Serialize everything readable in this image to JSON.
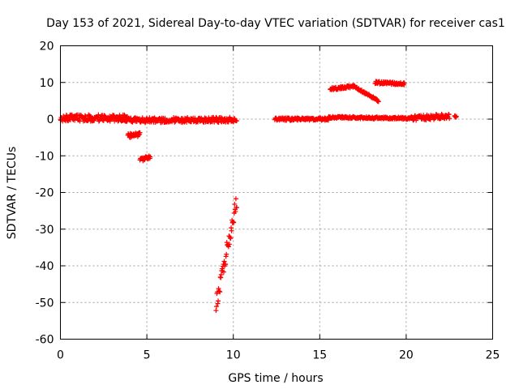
{
  "chart_data": {
    "type": "scatter",
    "title": "Day 153 of 2021, Sidereal Day-to-day VTEC variation (SDTVAR) for receiver cas1",
    "xlabel": "GPS time / hours",
    "ylabel": "SDTVAR / TECUs",
    "xlim": [
      0,
      25
    ],
    "ylim": [
      -60,
      20
    ],
    "xticks": [
      0,
      5,
      10,
      15,
      20,
      25
    ],
    "yticks": [
      -60,
      -50,
      -40,
      -30,
      -20,
      -10,
      0,
      10,
      20
    ],
    "grid": true,
    "marker": "+",
    "color": "#ff0000",
    "series": [
      {
        "name": "SDTVAR",
        "segments": [
          {
            "x_start": 0.0,
            "x_end": 3.9,
            "y_start": 0.3,
            "y_end": 0.3,
            "noise": 0.9
          },
          {
            "x_start": 3.9,
            "x_end": 4.6,
            "y_start": -4.5,
            "y_end": -4.2,
            "noise": 0.6
          },
          {
            "x_start": 4.6,
            "x_end": 5.2,
            "y_start": -11.2,
            "y_end": -10.3,
            "noise": 0.5
          },
          {
            "x_start": 3.5,
            "x_end": 10.2,
            "y_start": -0.3,
            "y_end": -0.2,
            "noise": 0.7
          },
          {
            "x_start": 9.0,
            "x_end": 10.2,
            "y_start": -50.5,
            "y_end": -22.0,
            "noise": 2.2
          },
          {
            "x_start": 12.4,
            "x_end": 15.5,
            "y_start": 0.0,
            "y_end": 0.0,
            "noise": 0.35
          },
          {
            "x_start": 15.5,
            "x_end": 20.3,
            "y_start": 0.5,
            "y_end": 0.2,
            "noise": 0.3
          },
          {
            "x_start": 15.6,
            "x_end": 17.0,
            "y_start": 8.2,
            "y_end": 9.0,
            "noise": 0.35
          },
          {
            "x_start": 17.0,
            "x_end": 18.4,
            "y_start": 8.8,
            "y_end": 5.0,
            "noise": 0.3
          },
          {
            "x_start": 18.2,
            "x_end": 19.9,
            "y_start": 10.0,
            "y_end": 9.6,
            "noise": 0.35
          },
          {
            "x_start": 20.3,
            "x_end": 22.5,
            "y_start": 0.3,
            "y_end": 0.8,
            "noise": 0.7
          },
          {
            "x_start": 22.8,
            "x_end": 22.9,
            "y_start": 0.8,
            "y_end": 0.8,
            "noise": 0.3
          }
        ]
      }
    ]
  }
}
